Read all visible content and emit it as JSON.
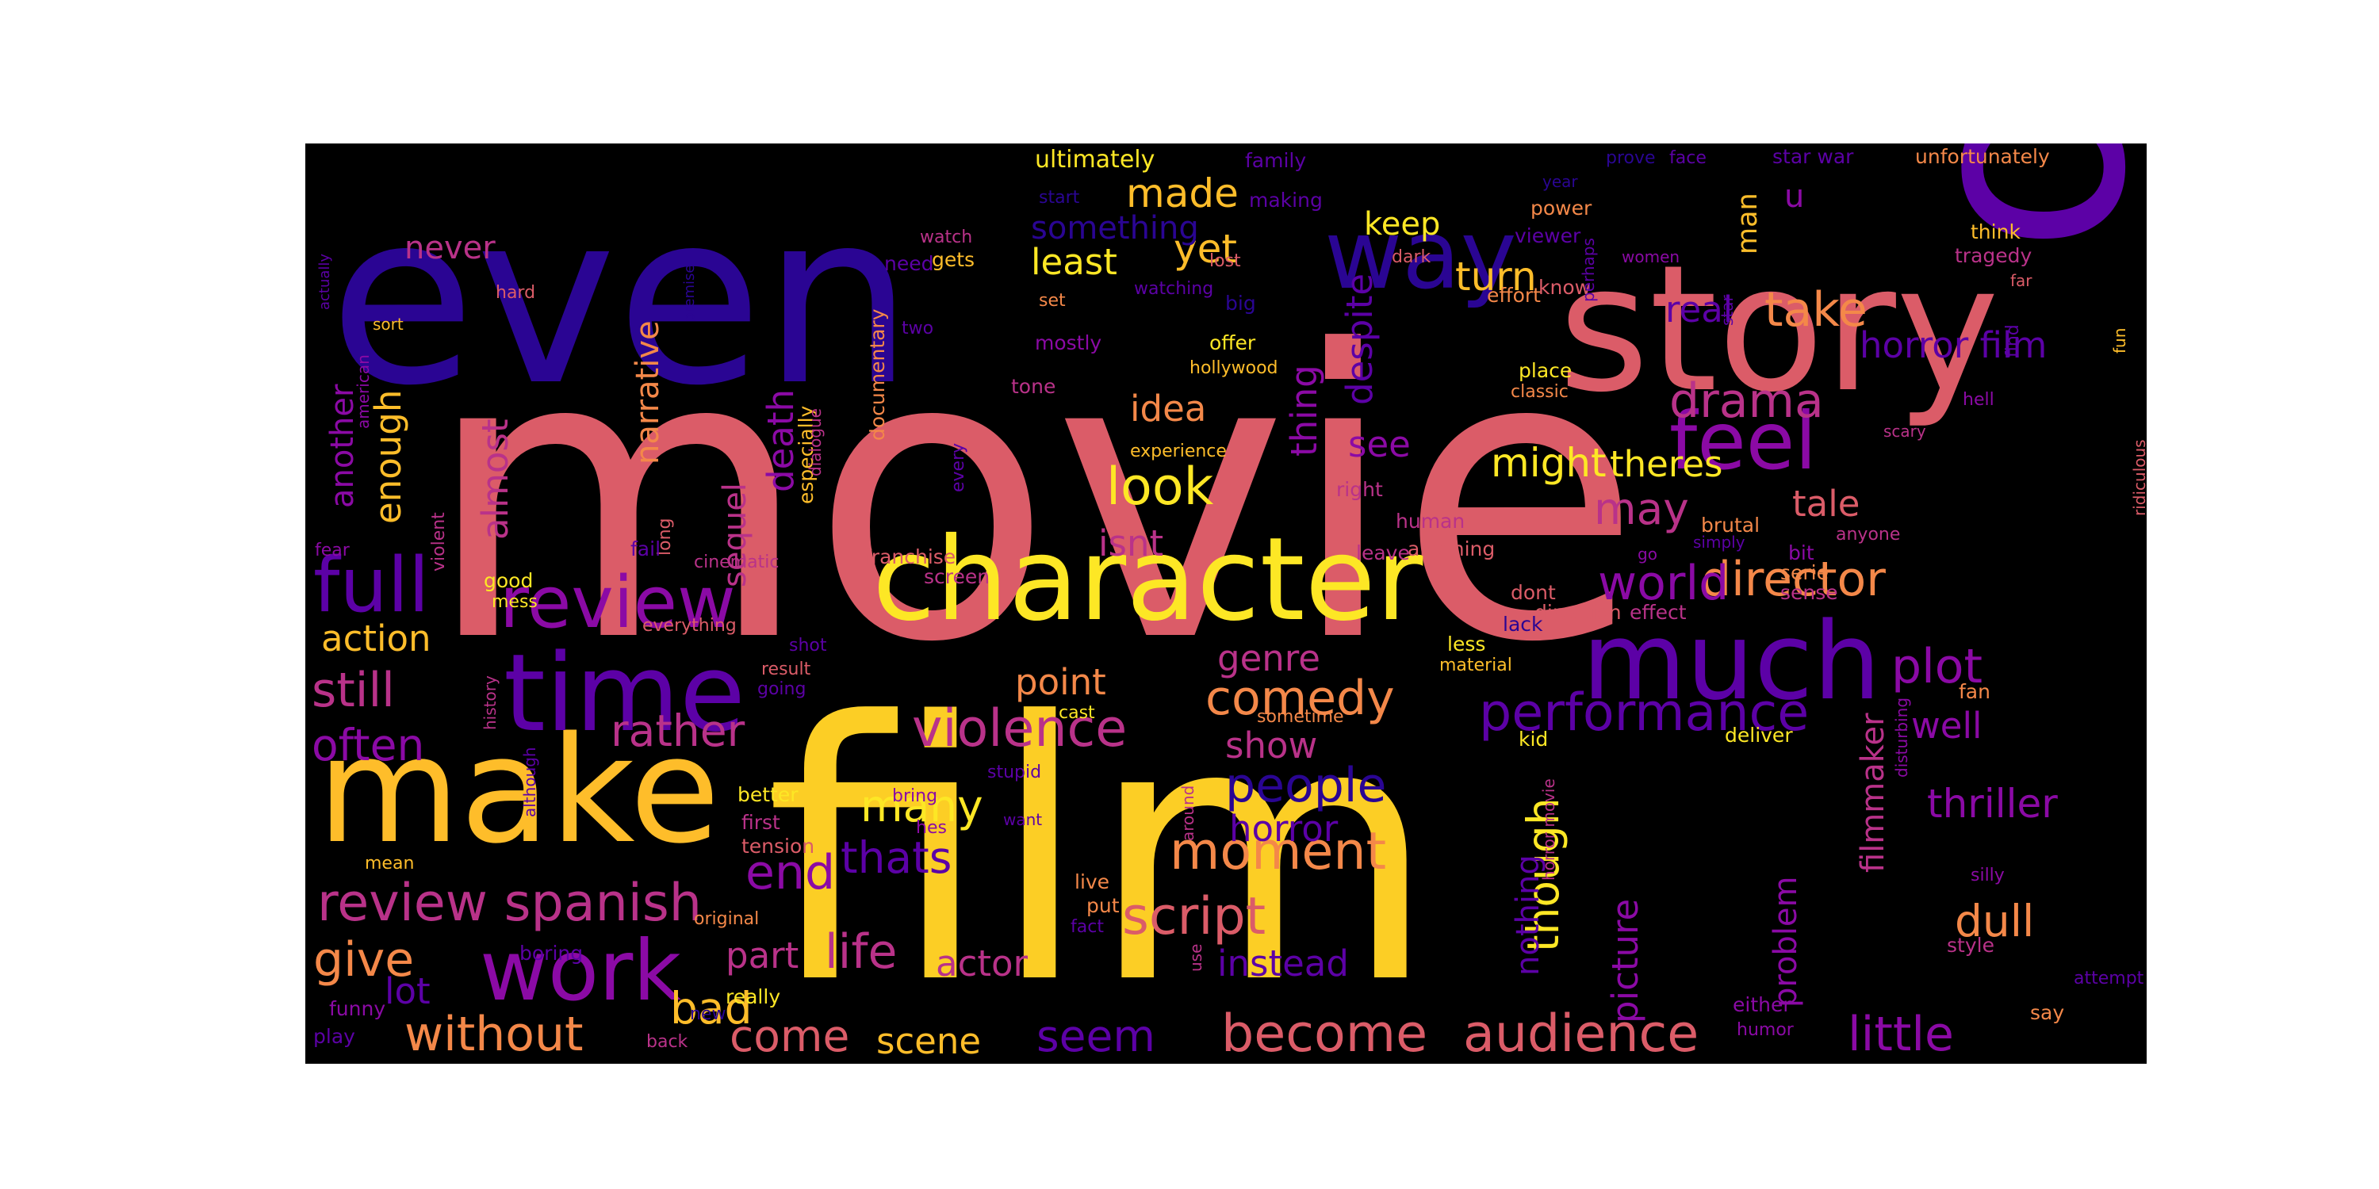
{
  "image": {
    "type": "word cloud",
    "background_color": "#000000",
    "palette": [
      "#2a0593",
      "#5c01a6",
      "#8b0aa5",
      "#b93289",
      "#db5c68",
      "#f48849",
      "#febd2a",
      "#fde725"
    ]
  },
  "words": [
    {
      "text": "movie",
      "color": "#db5c68"
    },
    {
      "text": "film",
      "color": "#fcce25"
    },
    {
      "text": "one",
      "color": "#5c01a6"
    },
    {
      "text": "even",
      "color": "#2a0593"
    },
    {
      "text": "story",
      "color": "#db5c68"
    },
    {
      "text": "make",
      "color": "#febd2a"
    },
    {
      "text": "character",
      "color": "#fde725"
    },
    {
      "text": "way",
      "color": "#2a0593"
    },
    {
      "text": "time",
      "color": "#5c01a6"
    },
    {
      "text": "much",
      "color": "#5c01a6"
    },
    {
      "text": "work",
      "color": "#8b0aa5"
    },
    {
      "text": "feel",
      "color": "#8b0aa5"
    },
    {
      "text": "full",
      "color": "#5c01a6"
    },
    {
      "text": "review",
      "color": "#8b0aa5"
    },
    {
      "text": "review spanish",
      "color": "#b93289"
    },
    {
      "text": "performance",
      "color": "#5c01a6"
    },
    {
      "text": "become",
      "color": "#db5c68"
    },
    {
      "text": "audience",
      "color": "#db5c68"
    },
    {
      "text": "violence",
      "color": "#b93289"
    },
    {
      "text": "script",
      "color": "#db5c68"
    },
    {
      "text": "moment",
      "color": "#f48849"
    },
    {
      "text": "director",
      "color": "#f48849"
    },
    {
      "text": "plot",
      "color": "#8b0aa5"
    },
    {
      "text": "comedy",
      "color": "#f48849"
    },
    {
      "text": "people",
      "color": "#2a0593"
    },
    {
      "text": "without",
      "color": "#f48849"
    },
    {
      "text": "little",
      "color": "#8b0aa5"
    },
    {
      "text": "world",
      "color": "#8b0aa5"
    },
    {
      "text": "take",
      "color": "#f48849"
    },
    {
      "text": "drama",
      "color": "#b93289"
    },
    {
      "text": "look",
      "color": "#fde725"
    },
    {
      "text": "still",
      "color": "#b93289"
    },
    {
      "text": "often",
      "color": "#8b0aa5"
    },
    {
      "text": "rather",
      "color": "#b93289"
    },
    {
      "text": "seem",
      "color": "#5c01a6"
    },
    {
      "text": "come",
      "color": "#db5c68"
    },
    {
      "text": "bad",
      "color": "#febd2a"
    },
    {
      "text": "give",
      "color": "#f48849"
    },
    {
      "text": "life",
      "color": "#b93289"
    },
    {
      "text": "end",
      "color": "#8b0aa5"
    },
    {
      "text": "thats",
      "color": "#5c01a6"
    },
    {
      "text": "many",
      "color": "#fde725"
    },
    {
      "text": "though",
      "color": "#fde725"
    },
    {
      "text": "thriller",
      "color": "#8b0aa5"
    },
    {
      "text": "made",
      "color": "#febd2a"
    },
    {
      "text": "yet",
      "color": "#febd2a"
    },
    {
      "text": "turn",
      "color": "#febd2a"
    },
    {
      "text": "theres",
      "color": "#fde725"
    },
    {
      "text": "might",
      "color": "#fde725"
    },
    {
      "text": "may",
      "color": "#b93289"
    },
    {
      "text": "tale",
      "color": "#db5c68"
    },
    {
      "text": "well",
      "color": "#8b0aa5"
    },
    {
      "text": "dull",
      "color": "#f48849"
    },
    {
      "text": "horror film",
      "color": "#5c01a6"
    },
    {
      "text": "real",
      "color": "#5c01a6"
    },
    {
      "text": "genre",
      "color": "#b93289"
    },
    {
      "text": "show",
      "color": "#b93289"
    },
    {
      "text": "horror",
      "color": "#5c01a6"
    },
    {
      "text": "instead",
      "color": "#5c01a6"
    },
    {
      "text": "actor",
      "color": "#b93289"
    },
    {
      "text": "part",
      "color": "#b93289"
    },
    {
      "text": "scene",
      "color": "#febd2a"
    },
    {
      "text": "lot",
      "color": "#5c01a6"
    },
    {
      "text": "point",
      "color": "#f48849"
    },
    {
      "text": "isnt",
      "color": "#b93289"
    },
    {
      "text": "idea",
      "color": "#f48849"
    },
    {
      "text": "see",
      "color": "#8b0aa5"
    },
    {
      "text": "least",
      "color": "#fde725"
    },
    {
      "text": "something",
      "color": "#2a0593"
    },
    {
      "text": "keep",
      "color": "#fde725"
    },
    {
      "text": "never",
      "color": "#b93289"
    },
    {
      "text": "action",
      "color": "#febd2a"
    },
    {
      "text": "enough",
      "color": "#febd2a"
    },
    {
      "text": "another",
      "color": "#8b0aa5"
    },
    {
      "text": "almost",
      "color": "#b93289"
    },
    {
      "text": "narrative",
      "color": "#f48849"
    },
    {
      "text": "death",
      "color": "#8b0aa5"
    },
    {
      "text": "sequel",
      "color": "#b93289"
    },
    {
      "text": "despite",
      "color": "#5c01a6"
    },
    {
      "text": "thing",
      "color": "#8b0aa5"
    },
    {
      "text": "man",
      "color": "#febd2a"
    },
    {
      "text": "u",
      "color": "#8b0aa5"
    },
    {
      "text": "nothing",
      "color": "#5c01a6"
    },
    {
      "text": "picture",
      "color": "#8b0aa5"
    },
    {
      "text": "problem",
      "color": "#8b0aa5"
    },
    {
      "text": "filmmaker",
      "color": "#b93289"
    },
    {
      "text": "ultimately",
      "color": "#fde725"
    },
    {
      "text": "documentary",
      "color": "#f48849"
    },
    {
      "text": "unfortunately",
      "color": "#f48849"
    },
    {
      "text": "star war",
      "color": "#5c01a6"
    },
    {
      "text": "prove",
      "color": "#2a0593"
    },
    {
      "text": "face",
      "color": "#5c01a6"
    },
    {
      "text": "family",
      "color": "#5c01a6"
    },
    {
      "text": "start",
      "color": "#2a0593"
    },
    {
      "text": "making",
      "color": "#5c01a6"
    },
    {
      "text": "power",
      "color": "#f48849"
    },
    {
      "text": "year",
      "color": "#2a0593"
    },
    {
      "text": "viewer",
      "color": "#5c01a6"
    },
    {
      "text": "women",
      "color": "#8b0aa5"
    },
    {
      "text": "think",
      "color": "#febd2a"
    },
    {
      "text": "tragedy",
      "color": "#b93289"
    },
    {
      "text": "far",
      "color": "#db5c68"
    },
    {
      "text": "fun",
      "color": "#febd2a"
    },
    {
      "text": "find",
      "color": "#5c01a6"
    },
    {
      "text": "know",
      "color": "#db5c68"
    },
    {
      "text": "perhaps",
      "color": "#5c01a6"
    },
    {
      "text": "star",
      "color": "#5c01a6"
    },
    {
      "text": "effort",
      "color": "#f48849"
    },
    {
      "text": "dark",
      "color": "#db5c68"
    },
    {
      "text": "lost",
      "color": "#db5c68"
    },
    {
      "text": "watch",
      "color": "#b93289"
    },
    {
      "text": "gets",
      "color": "#febd2a"
    },
    {
      "text": "need",
      "color": "#5c01a6"
    },
    {
      "text": "watching",
      "color": "#5c01a6"
    },
    {
      "text": "big",
      "color": "#2a0593"
    },
    {
      "text": "set",
      "color": "#f48849"
    },
    {
      "text": "mostly",
      "color": "#8b0aa5"
    },
    {
      "text": "two",
      "color": "#5c01a6"
    },
    {
      "text": "offer",
      "color": "#fde725"
    },
    {
      "text": "hollywood",
      "color": "#febd2a"
    },
    {
      "text": "tone",
      "color": "#b93289"
    },
    {
      "text": "place",
      "color": "#fde725"
    },
    {
      "text": "classic",
      "color": "#f48849"
    },
    {
      "text": "hell",
      "color": "#8b0aa5"
    },
    {
      "text": "scary",
      "color": "#b93289"
    },
    {
      "text": "ridiculous",
      "color": "#db5c68"
    },
    {
      "text": "experience",
      "color": "#febd2a"
    },
    {
      "text": "every",
      "color": "#5c01a6"
    },
    {
      "text": "especially",
      "color": "#febd2a"
    },
    {
      "text": "dialogue",
      "color": "#b93289"
    },
    {
      "text": "right",
      "color": "#b93289"
    },
    {
      "text": "human",
      "color": "#b93289"
    },
    {
      "text": "anything",
      "color": "#db5c68"
    },
    {
      "text": "brutal",
      "color": "#f48849"
    },
    {
      "text": "simply",
      "color": "#5c01a6"
    },
    {
      "text": "go",
      "color": "#8b0aa5"
    },
    {
      "text": "bit",
      "color": "#8b0aa5"
    },
    {
      "text": "anyone",
      "color": "#b93289"
    },
    {
      "text": "serie",
      "color": "#f48849"
    },
    {
      "text": "sense",
      "color": "#b93289"
    },
    {
      "text": "leave",
      "color": "#b93289"
    },
    {
      "text": "dont",
      "color": "#db5c68"
    },
    {
      "text": "lack",
      "color": "#2a0593"
    },
    {
      "text": "less",
      "color": "#fde725"
    },
    {
      "text": "direction",
      "color": "#db5c68"
    },
    {
      "text": "effect",
      "color": "#b93289"
    },
    {
      "text": "material",
      "color": "#febd2a"
    },
    {
      "text": "disturbing",
      "color": "#8b0aa5"
    },
    {
      "text": "fan",
      "color": "#f48849"
    },
    {
      "text": "kid",
      "color": "#fde725"
    },
    {
      "text": "deliver",
      "color": "#fde725"
    },
    {
      "text": "horror movie",
      "color": "#b93289"
    },
    {
      "text": "silly",
      "color": "#8b0aa5"
    },
    {
      "text": "style",
      "color": "#b93289"
    },
    {
      "text": "attempt",
      "color": "#5c01a6"
    },
    {
      "text": "say",
      "color": "#f48849"
    },
    {
      "text": "either",
      "color": "#8b0aa5"
    },
    {
      "text": "humor",
      "color": "#8b0aa5"
    },
    {
      "text": "actually",
      "color": "#5c01a6"
    },
    {
      "text": "hard",
      "color": "#db5c68"
    },
    {
      "text": "sort",
      "color": "#febd2a"
    },
    {
      "text": "premise",
      "color": "#2a0593"
    },
    {
      "text": "american",
      "color": "#8b0aa5"
    },
    {
      "text": "violent",
      "color": "#b93289"
    },
    {
      "text": "long",
      "color": "#db5c68"
    },
    {
      "text": "fear",
      "color": "#8b0aa5"
    },
    {
      "text": "fail",
      "color": "#5c01a6"
    },
    {
      "text": "cinematic",
      "color": "#b93289"
    },
    {
      "text": "franchise",
      "color": "#db5c68"
    },
    {
      "text": "screen",
      "color": "#b93289"
    },
    {
      "text": "good",
      "color": "#fde725"
    },
    {
      "text": "mess",
      "color": "#fde725"
    },
    {
      "text": "everything",
      "color": "#db5c68"
    },
    {
      "text": "shot",
      "color": "#5c01a6"
    },
    {
      "text": "result",
      "color": "#db5c68"
    },
    {
      "text": "going",
      "color": "#5c01a6"
    },
    {
      "text": "history",
      "color": "#b93289"
    },
    {
      "text": "cast",
      "color": "#fde725"
    },
    {
      "text": "sometime",
      "color": "#f48849"
    },
    {
      "text": "although",
      "color": "#5c01a6"
    },
    {
      "text": "around",
      "color": "#b93289"
    },
    {
      "text": "stupid",
      "color": "#5c01a6"
    },
    {
      "text": "better",
      "color": "#fde725"
    },
    {
      "text": "first",
      "color": "#b93289"
    },
    {
      "text": "bring",
      "color": "#8b0aa5"
    },
    {
      "text": "want",
      "color": "#5c01a6"
    },
    {
      "text": "hes",
      "color": "#8b0aa5"
    },
    {
      "text": "tension",
      "color": "#db5c68"
    },
    {
      "text": "mean",
      "color": "#febd2a"
    },
    {
      "text": "live",
      "color": "#f48849"
    },
    {
      "text": "put",
      "color": "#f48849"
    },
    {
      "text": "fact",
      "color": "#5c01a6"
    },
    {
      "text": "use",
      "color": "#b93289"
    },
    {
      "text": "original",
      "color": "#f48849"
    },
    {
      "text": "boring",
      "color": "#5c01a6"
    },
    {
      "text": "really",
      "color": "#fde725"
    },
    {
      "text": "funny",
      "color": "#8b0aa5"
    },
    {
      "text": "new",
      "color": "#2a0593"
    },
    {
      "text": "play",
      "color": "#5c01a6"
    },
    {
      "text": "back",
      "color": "#b93289"
    }
  ]
}
